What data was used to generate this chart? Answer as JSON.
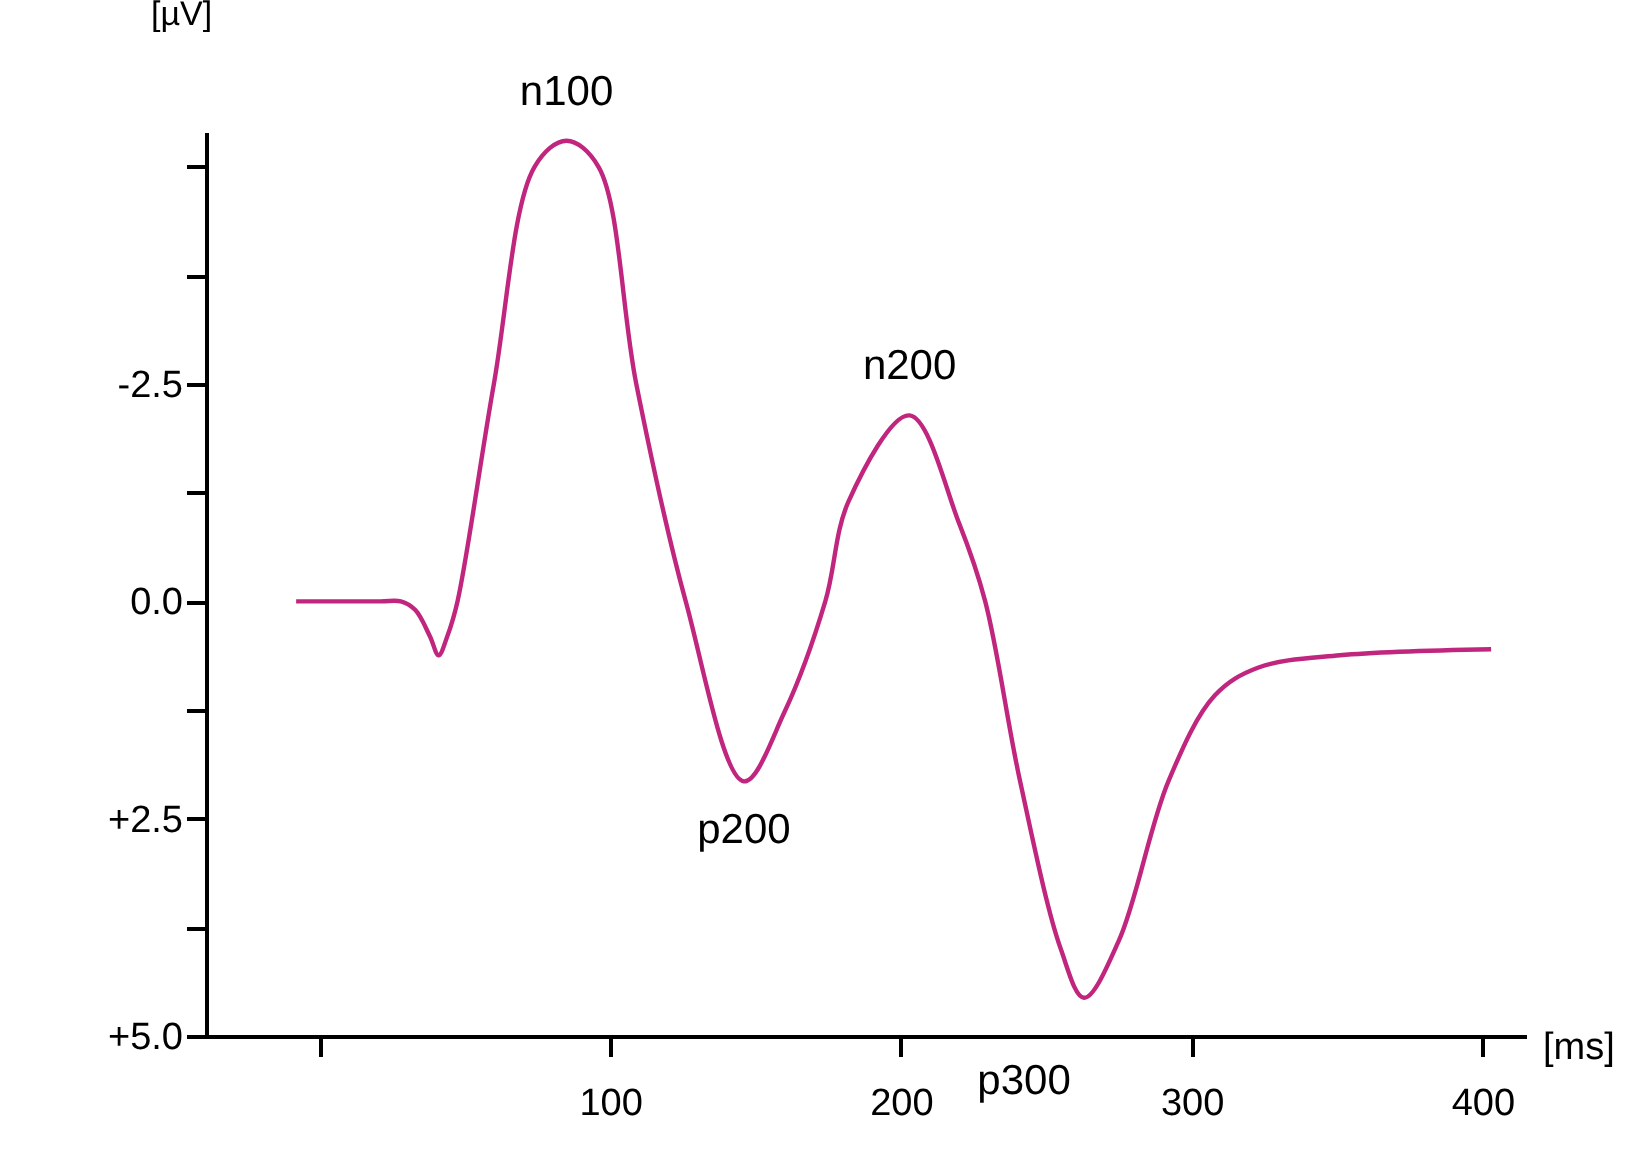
{
  "chart_data": {
    "type": "line",
    "xlabel": "[ms]",
    "ylabel": "[µV]",
    "x": [
      -8,
      21,
      28,
      33,
      38,
      41,
      44,
      47.5,
      60,
      74,
      85,
      96,
      109,
      126,
      146,
      160,
      174,
      182,
      203,
      220,
      229,
      241,
      255,
      263,
      275,
      292,
      308,
      323,
      351,
      403
    ],
    "series": [
      {
        "color": "#c0267e",
        "values": [
          0,
          0,
          0,
          0.1,
          0.4,
          0.62,
          0.4,
          0,
          -2.5,
          -5.0,
          -5.3,
          -5.0,
          -2.5,
          0,
          2.07,
          1.27,
          0,
          -1.15,
          -2.14,
          -0.9,
          0,
          2.07,
          4.0,
          4.56,
          3.9,
          2.07,
          1.08,
          0.76,
          0.62,
          0.55
        ]
      }
    ],
    "xlim": [
      -39,
      415
    ],
    "ylim": [
      5.0,
      -5.4
    ],
    "xticks": [
      {
        "value": 0,
        "label": null
      },
      100,
      200,
      300,
      400
    ],
    "yticks": [
      {
        "value": -5.0,
        "label": null
      },
      {
        "value": -3.75,
        "label": null
      },
      -2.5,
      {
        "value": -1.25,
        "label": null
      },
      {
        "value": 0,
        "label": "0.0"
      },
      {
        "value": 1.25,
        "label": null
      },
      {
        "value": 2.5,
        "label": "+2.5"
      },
      {
        "value": 3.75,
        "label": null
      },
      {
        "value": 5.0,
        "label": "+5.0"
      }
    ],
    "annotations": [
      {
        "text": "n100",
        "x": 85,
        "y": -5.3
      },
      {
        "text": "p200",
        "x": 146,
        "y": 2.07
      },
      {
        "text": "n200",
        "x": 203,
        "y": -2.14
      },
      {
        "text": "p300",
        "x": 263,
        "y": 4.56
      }
    ],
    "grid": false,
    "marker": "none",
    "line_style": "solid"
  }
}
